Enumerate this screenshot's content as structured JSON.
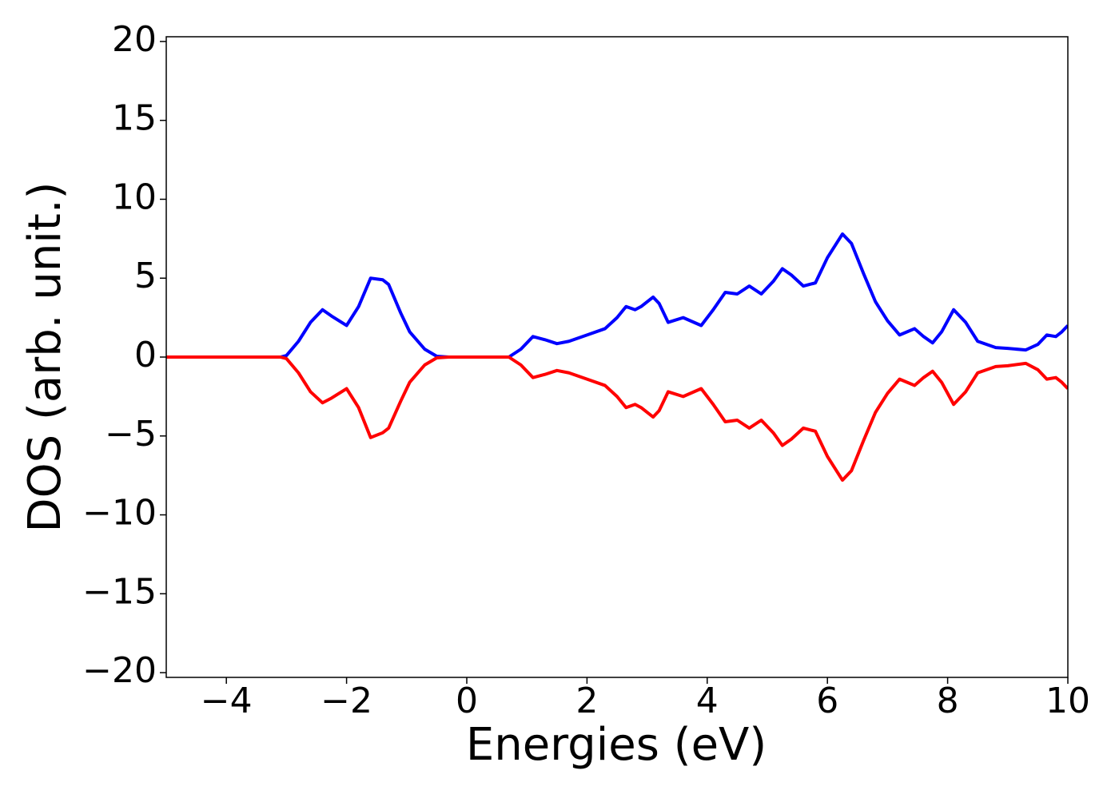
{
  "chart_data": {
    "type": "line",
    "xlabel": "Energies (eV)",
    "ylabel": "DOS (arb. unit.)",
    "x": [
      -5,
      -3.1,
      -3.0,
      -2.8,
      -2.6,
      -2.4,
      -2.25,
      -2.0,
      -1.8,
      -1.6,
      -1.4,
      -1.3,
      -1.1,
      -0.95,
      -0.7,
      -0.5,
      -0.3,
      0.7,
      0.9,
      1.1,
      1.3,
      1.5,
      1.7,
      2.0,
      2.3,
      2.5,
      2.65,
      2.8,
      2.9,
      3.1,
      3.2,
      3.35,
      3.6,
      3.9,
      4.1,
      4.3,
      4.5,
      4.7,
      4.9,
      5.1,
      5.25,
      5.4,
      5.6,
      5.8,
      6.0,
      6.25,
      6.4,
      6.6,
      6.8,
      7.0,
      7.2,
      7.45,
      7.6,
      7.75,
      7.9,
      8.1,
      8.3,
      8.5,
      8.8,
      9.0,
      9.3,
      9.5,
      9.65,
      9.8,
      9.9,
      10
    ],
    "series": [
      {
        "color": "#0000ff",
        "values": [
          0,
          0,
          0.1,
          1.0,
          2.2,
          3.0,
          2.6,
          2.0,
          3.2,
          5.0,
          4.9,
          4.6,
          2.8,
          1.6,
          0.5,
          0.05,
          0,
          0,
          0.5,
          1.3,
          1.1,
          0.85,
          1.0,
          1.4,
          1.8,
          2.5,
          3.2,
          3.0,
          3.2,
          3.8,
          3.4,
          2.2,
          2.5,
          2.0,
          3.0,
          4.1,
          4.0,
          4.5,
          4.0,
          4.8,
          5.6,
          5.2,
          4.5,
          4.7,
          6.3,
          7.8,
          7.2,
          5.3,
          3.5,
          2.3,
          1.4,
          1.8,
          1.3,
          0.9,
          1.6,
          3.0,
          2.2,
          1.0,
          0.6,
          0.55,
          0.45,
          0.8,
          1.4,
          1.3,
          1.6,
          2.0
        ]
      },
      {
        "color": "#ff0000",
        "values": [
          0,
          0,
          -0.1,
          -1.0,
          -2.2,
          -2.9,
          -2.6,
          -2.0,
          -3.2,
          -5.1,
          -4.8,
          -4.5,
          -2.8,
          -1.6,
          -0.5,
          -0.05,
          0,
          0,
          -0.5,
          -1.3,
          -1.1,
          -0.85,
          -1.0,
          -1.4,
          -1.8,
          -2.5,
          -3.2,
          -3.0,
          -3.2,
          -3.8,
          -3.4,
          -2.2,
          -2.5,
          -2.0,
          -3.0,
          -4.1,
          -4.0,
          -4.5,
          -4.0,
          -4.8,
          -5.6,
          -5.2,
          -4.5,
          -4.7,
          -6.3,
          -7.8,
          -7.2,
          -5.3,
          -3.5,
          -2.3,
          -1.4,
          -1.8,
          -1.3,
          -0.9,
          -1.6,
          -3.0,
          -2.2,
          -1.0,
          -0.6,
          -0.55,
          -0.4,
          -0.8,
          -1.4,
          -1.3,
          -1.6,
          -2.0
        ]
      }
    ],
    "xlim": [
      -5,
      10
    ],
    "xticks": [
      {
        "value": -4,
        "label": "−4"
      },
      {
        "value": -2,
        "label": "−2"
      },
      0,
      2,
      4,
      6,
      8,
      10
    ],
    "ylim": [
      -20.3,
      20.3
    ],
    "yticks": [
      {
        "value": -20,
        "label": "−20"
      },
      {
        "value": -15,
        "label": "−15"
      },
      {
        "value": -10,
        "label": "−10"
      },
      {
        "value": -5,
        "label": "−5"
      },
      0,
      5,
      10,
      15,
      20
    ]
  }
}
